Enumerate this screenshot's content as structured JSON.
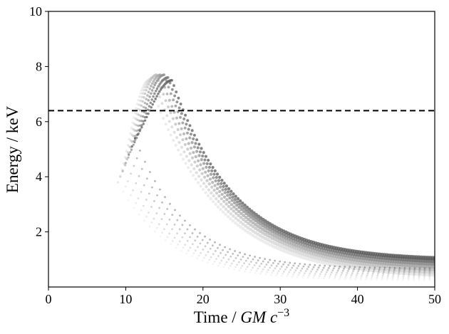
{
  "chart_data": {
    "type": "scatter",
    "title": "",
    "xlabel_prefix": "Time / ",
    "xlabel_math": "GM c",
    "xlabel_sup": "−3",
    "ylabel": "Energy / keV",
    "xlim": [
      0,
      50
    ],
    "ylim": [
      0,
      10
    ],
    "x_ticks": [
      0,
      10,
      20,
      30,
      40,
      50
    ],
    "y_ticks": [
      2,
      4,
      6,
      8,
      10
    ],
    "grid": false,
    "legend": "none",
    "reference_line": {
      "y": 6.4,
      "style": "dashed",
      "color": "#000000"
    },
    "series": [
      {
        "description_color_scale": "grayscale",
        "tracks": [
          {
            "t_start": 9.0,
            "e_start": 3.8,
            "t_peak": 13.0,
            "e_peak": 7.5,
            "t_end": 50,
            "e_end": 0.35,
            "shade": "#e6e6e6"
          },
          {
            "t_start": 9.3,
            "e_start": 4.0,
            "t_peak": 13.5,
            "e_peak": 7.6,
            "t_end": 50,
            "e_end": 0.45,
            "shade": "#d4d4d4"
          },
          {
            "t_start": 9.6,
            "e_start": 4.2,
            "t_peak": 14.0,
            "e_peak": 7.7,
            "t_end": 50,
            "e_end": 0.55,
            "shade": "#bdbdbd"
          },
          {
            "t_start": 10.0,
            "e_start": 4.5,
            "t_peak": 14.5,
            "e_peak": 7.7,
            "t_end": 50,
            "e_end": 0.65,
            "shade": "#a6a6a6"
          },
          {
            "t_start": 10.4,
            "e_start": 4.8,
            "t_peak": 15.0,
            "e_peak": 7.7,
            "t_end": 50,
            "e_end": 0.75,
            "shade": "#8c8c8c"
          },
          {
            "t_start": 10.8,
            "e_start": 5.1,
            "t_peak": 15.5,
            "e_peak": 7.6,
            "t_end": 50,
            "e_end": 0.85,
            "shade": "#727272"
          },
          {
            "t_start": 11.2,
            "e_start": 5.4,
            "t_peak": 16.0,
            "e_peak": 7.5,
            "t_end": 50,
            "e_end": 0.95,
            "shade": "#5a5a5a"
          }
        ]
      }
    ]
  }
}
